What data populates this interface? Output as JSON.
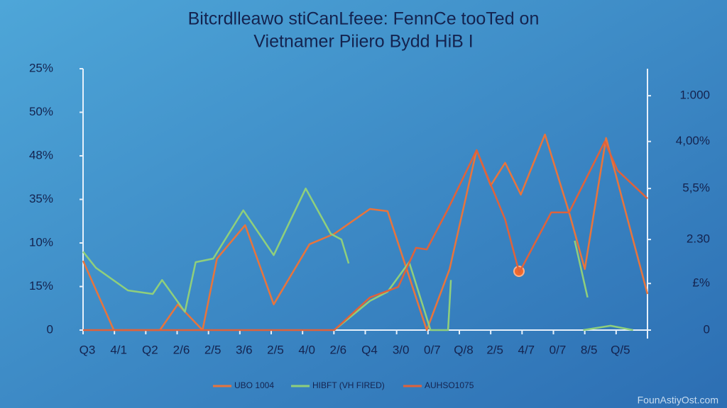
{
  "chart_data": {
    "type": "line",
    "title": "Bitcrdlleawo stiCanLfeee: FennCe tooTed on",
    "subtitle": "Vietnamer Piiero Bydd HiB I",
    "xlim": [
      0,
      18
    ],
    "xticks": [
      {
        "value": 0,
        "label": "Q3"
      },
      {
        "value": 1,
        "label": "4/1"
      },
      {
        "value": 2,
        "label": "Q2"
      },
      {
        "value": 3,
        "label": "2/6"
      },
      {
        "value": 4,
        "label": "2/5"
      },
      {
        "value": 5,
        "label": "3/6"
      },
      {
        "value": 6,
        "label": "2/5"
      },
      {
        "value": 7,
        "label": "4/0"
      },
      {
        "value": 8,
        "label": "2/6"
      },
      {
        "value": 9,
        "label": "Q4"
      },
      {
        "value": 10,
        "label": "3/0"
      },
      {
        "value": 11,
        "label": "0/7"
      },
      {
        "value": 12,
        "label": "Q/8"
      },
      {
        "value": 13,
        "label": "2/5"
      },
      {
        "value": 14,
        "label": "4/7"
      },
      {
        "value": 15,
        "label": "0/7"
      },
      {
        "value": 16,
        "label": "8/5"
      },
      {
        "value": 17,
        "label": "Q/5"
      }
    ],
    "ylim": [
      0,
      6
    ],
    "yticks": [
      0,
      {
        "value": 1,
        "label": "15%"
      },
      {
        "value": 2,
        "label": "10%"
      },
      {
        "value": 3,
        "label": "35%"
      },
      {
        "value": 4,
        "label": "48%"
      },
      {
        "value": 5,
        "label": "50%"
      },
      {
        "value": 6,
        "label": "25%"
      }
    ],
    "y2lim": [
      0,
      6
    ],
    "y2ticks": [
      0,
      {
        "value": 1.07,
        "label": "£%"
      },
      {
        "value": 2.08,
        "label": "2.30"
      },
      {
        "value": 3.25,
        "label": "5,5%"
      },
      {
        "value": 4.33,
        "label": "4,00%"
      },
      {
        "value": 5.38,
        "label": "1:000"
      }
    ],
    "grid": false,
    "series": [
      {
        "name": "UBO 1004",
        "color": "#e8743c",
        "x": [
          0,
          0.98,
          2.45,
          3.02,
          3.81,
          4.27,
          5.17,
          6.08,
          7.22,
          8.01,
          9.15,
          9.71,
          10.96,
          11.69,
          12.55,
          13.0,
          13.46,
          13.96,
          14.73,
          15.5,
          16.0,
          16.68,
          17.43,
          18
        ],
        "values": [
          1.59,
          0,
          0,
          0.59,
          0,
          1.64,
          2.41,
          0.59,
          1.97,
          2.21,
          2.78,
          2.73,
          0,
          1.4,
          4.13,
          3.32,
          3.84,
          3.11,
          4.49,
          2.7,
          1.4,
          4.41,
          2.37,
          0.83
        ]
      },
      {
        "name": "HIBFT (VH FIRED)",
        "color": "#8fcf7c",
        "x": [
          0,
          0.41,
          1.43,
          2.22,
          2.52,
          3.25,
          3.59,
          4.15,
          5.11,
          6.08,
          7.1,
          7.9,
          8.24,
          8.47,
          null,
          8.01,
          9.15,
          9.71,
          10.4,
          11.08,
          11.64,
          11.73,
          null,
          15.68,
          16.09,
          null,
          15.95,
          16.82,
          17.54
        ],
        "values": [
          1.8,
          1.43,
          0.91,
          0.83,
          1.15,
          0.42,
          1.56,
          1.64,
          2.75,
          1.72,
          3.25,
          2.21,
          2.08,
          1.53,
          null,
          0,
          0.67,
          0.88,
          1.56,
          0,
          0,
          1.15,
          null,
          2.05,
          0.75,
          null,
          0,
          0.1,
          0
        ]
      },
      {
        "name": "AUHSO1075",
        "color": "#e0623a",
        "x": [
          0,
          8.01,
          9.15,
          10.05,
          10.62,
          10.96,
          11.64,
          12.55,
          13.46,
          13.91,
          14.93,
          15.5,
          16.64,
          17.04,
          18
        ],
        "values": [
          0,
          0,
          0.75,
          0.99,
          1.89,
          1.85,
          2.78,
          4.13,
          2.54,
          1.32,
          2.7,
          2.7,
          4.33,
          3.67,
          3.02
        ]
      }
    ],
    "watermark": "FounAstiyOst.com"
  }
}
